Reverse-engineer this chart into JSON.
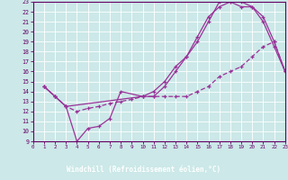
{
  "xlabel": "Windchill (Refroidissement éolien,°C)",
  "xlim": [
    0,
    23
  ],
  "ylim": [
    9,
    23
  ],
  "xticks": [
    0,
    1,
    2,
    3,
    4,
    5,
    6,
    7,
    8,
    9,
    10,
    11,
    12,
    13,
    14,
    15,
    16,
    17,
    18,
    19,
    20,
    21,
    22,
    23
  ],
  "yticks": [
    9,
    10,
    11,
    12,
    13,
    14,
    15,
    16,
    17,
    18,
    19,
    20,
    21,
    22,
    23
  ],
  "bg_color": "#cce8e8",
  "line_color": "#993399",
  "bar_color": "#660066",
  "curve1_x": [
    1,
    2,
    3,
    10,
    11,
    12,
    13,
    14,
    15,
    16,
    17,
    18,
    19,
    20,
    21,
    22,
    23
  ],
  "curve1_y": [
    14.5,
    13.5,
    12.5,
    13.5,
    14.0,
    15.0,
    16.5,
    17.5,
    19.0,
    21.0,
    23.0,
    23.0,
    22.5,
    22.5,
    21.0,
    18.5,
    16.0
  ],
  "curve2_x": [
    1,
    2,
    3,
    4,
    5,
    6,
    7,
    8,
    10,
    11,
    12,
    13,
    14,
    15,
    16,
    17,
    18,
    19,
    20,
    21,
    22,
    23
  ],
  "curve2_y": [
    14.5,
    13.5,
    12.5,
    9.0,
    10.3,
    10.5,
    11.3,
    14.0,
    13.5,
    13.5,
    14.5,
    16.0,
    17.5,
    19.5,
    21.5,
    22.5,
    23.0,
    23.0,
    22.5,
    21.5,
    19.0,
    16.0
  ],
  "curve3_x": [
    1,
    2,
    3,
    4,
    5,
    6,
    7,
    8,
    9,
    10,
    11,
    12,
    13,
    14,
    15,
    16,
    17,
    18,
    19,
    20,
    21,
    22,
    23
  ],
  "curve3_y": [
    14.5,
    13.5,
    12.5,
    12.0,
    12.3,
    12.5,
    12.8,
    13.0,
    13.2,
    13.5,
    13.5,
    13.5,
    13.5,
    13.5,
    14.0,
    14.5,
    15.5,
    16.0,
    16.5,
    17.5,
    18.5,
    19.0,
    16.0
  ]
}
